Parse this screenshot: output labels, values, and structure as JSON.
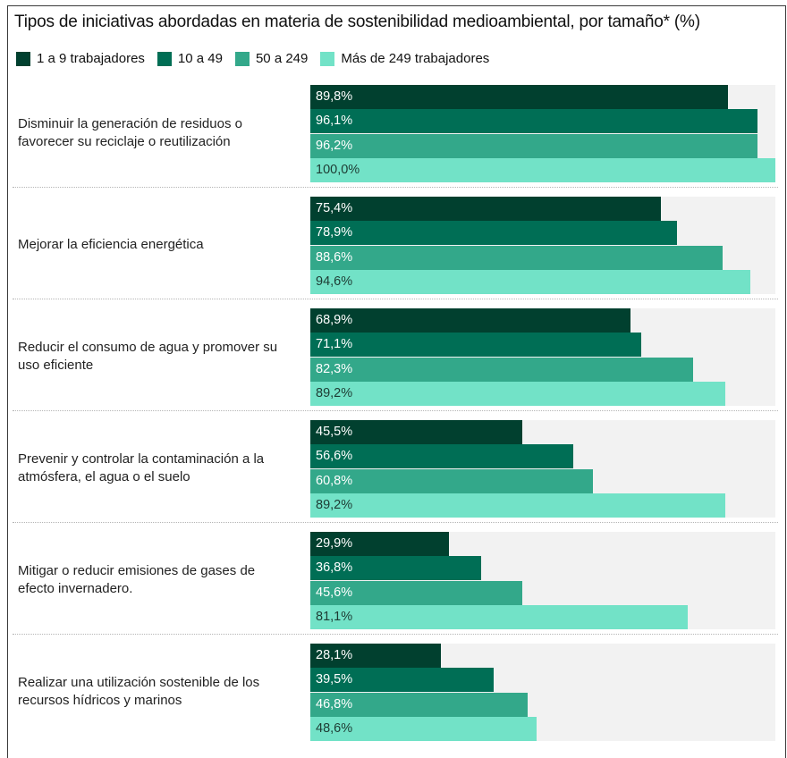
{
  "chart_data": {
    "type": "bar",
    "orientation": "horizontal",
    "title": "Tipos de iniciativas abordadas en materia de sostenibilidad  medioambiental, por tamaño* (%)",
    "xlim": [
      0,
      100
    ],
    "legend_position": "top-left",
    "grid": false,
    "colors": [
      "#01402f",
      "#006e55",
      "#33a88a",
      "#72e2c7"
    ],
    "label_colors": [
      "#ffffff",
      "#ffffff",
      "#ffffff",
      "#1d3b33"
    ],
    "series": [
      {
        "name": "1 a 9 trabajadores",
        "values": [
          89.8,
          75.4,
          68.9,
          45.5,
          29.9,
          28.1
        ],
        "labels": [
          "89,8%",
          "75,4%",
          "68,9%",
          "45,5%",
          "29,9%",
          "28,1%"
        ]
      },
      {
        "name": "10 a 49",
        "values": [
          96.1,
          78.9,
          71.1,
          56.6,
          36.8,
          39.5
        ],
        "labels": [
          "96,1%",
          "78,9%",
          "71,1%",
          "56,6%",
          "36,8%",
          "39,5%"
        ]
      },
      {
        "name": "50 a 249",
        "values": [
          96.2,
          88.6,
          82.3,
          60.8,
          45.6,
          46.8
        ],
        "labels": [
          "96,2%",
          "88,6%",
          "82,3%",
          "60,8%",
          "45,6%",
          "46,8%"
        ]
      },
      {
        "name": "Más de 249 trabajadores",
        "values": [
          100.0,
          94.6,
          89.2,
          89.2,
          81.1,
          48.6
        ],
        "labels": [
          "100,0%",
          "94,6%",
          "89,2%",
          "89,2%",
          "81,1%",
          "48,6%"
        ]
      }
    ],
    "categories": [
      [
        "Disminuir la generación de residuos o",
        "favorecer su reciclaje o reutilización"
      ],
      [
        "Mejorar la eficiencia energética"
      ],
      [
        "Reducir el consumo de agua y promover su",
        "uso eficiente"
      ],
      [
        "Prevenir y controlar la contaminación a la",
        "atmósfera, el agua o el suelo"
      ],
      [
        "Mitigar o reducir emisiones de gases de",
        "efecto invernadero."
      ],
      [
        "Realizar una utilización sostenible de los",
        "recursos hídricos y marinos"
      ]
    ]
  }
}
